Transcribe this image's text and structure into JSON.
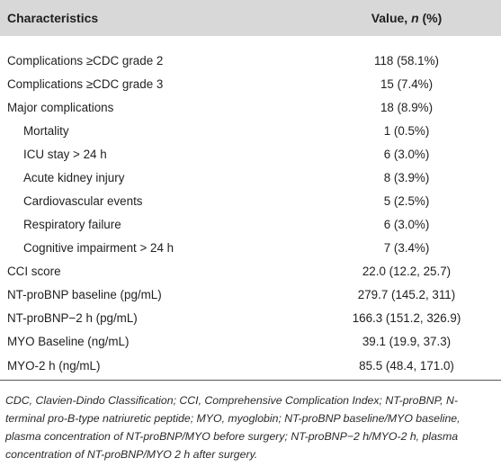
{
  "header": {
    "characteristics": "Characteristics",
    "value_prefix": "Value, ",
    "value_italic": "n",
    "value_suffix": " (%)"
  },
  "rows": [
    {
      "label": "Complications ≥CDC grade 2",
      "value": "118 (58.1%)"
    },
    {
      "label": "Complications ≥CDC grade 3",
      "value": "15 (7.4%)"
    },
    {
      "label": "Major complications",
      "value": "18 (8.9%)"
    },
    {
      "label": "Mortality",
      "value": "1 (0.5%)"
    },
    {
      "label": "ICU stay > 24 h",
      "value": "6 (3.0%)"
    },
    {
      "label": "Acute kidney injury",
      "value": "8 (3.9%)"
    },
    {
      "label": "Cardiovascular events",
      "value": "5 (2.5%)"
    },
    {
      "label": "Respiratory failure",
      "value": "6 (3.0%)"
    },
    {
      "label": "Cognitive impairment > 24 h",
      "value": "7 (3.4%)"
    },
    {
      "label": "CCI score",
      "value": "22.0 (12.2, 25.7)"
    },
    {
      "label": "NT-proBNP baseline (pg/mL)",
      "value": "279.7 (145.2, 311)"
    },
    {
      "label": "NT-proBNP−2 h (pg/mL)",
      "value": "166.3 (151.2, 326.9)"
    },
    {
      "label": "MYO Baseline (ng/mL)",
      "value": "39.1 (19.9, 37.3)"
    },
    {
      "label": "MYO-2 h (ng/mL)",
      "value": "85.5 (48.4, 171.0)"
    }
  ],
  "footnote": "CDC, Clavien-Dindo Classification; CCI, Comprehensive Complication Index; NT-proBNP, N-terminal pro-B-type natriuretic peptide; MYO, myoglobin; NT-proBNP baseline/MYO baseline, plasma concentration of NT-proBNP/MYO before surgery; NT-proBNP−2 h/MYO-2 h, plasma concentration of NT-proBNP/MYO 2 h after surgery."
}
